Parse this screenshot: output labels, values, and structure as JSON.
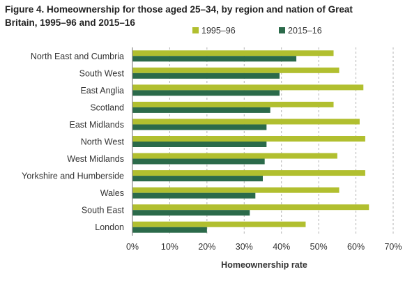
{
  "figure_title": "Figure 4. Homeownership for those aged 25–34, by region and nation of Great Britain, 1995–96 and 2015–16",
  "colors": {
    "series_1995": "#b1bf2f",
    "series_2015": "#2b6a4a",
    "grid": "#b3b3b3",
    "axis": "#6d6d6d",
    "text": "#333333"
  },
  "chart_data": {
    "type": "bar",
    "orientation": "horizontal",
    "title": "Figure 4. Homeownership for those aged 25–34, by region and nation of Great Britain, 1995–96 and 2015–16",
    "xlabel": "Homeownership rate",
    "ylabel": "",
    "xlim": [
      0,
      70
    ],
    "x_ticks": [
      0,
      10,
      20,
      30,
      40,
      50,
      60,
      70
    ],
    "x_tick_labels": [
      "0%",
      "10%",
      "20%",
      "30%",
      "40%",
      "50%",
      "60%",
      "70%"
    ],
    "grid": "vertical dashed",
    "legend_position": "top",
    "categories": [
      "North East and Cumbria",
      "South West",
      "East Anglia",
      "Scotland",
      "East Midlands",
      "North West",
      "West Midlands",
      "Yorkshire and Humberside",
      "Wales",
      "South East",
      "London"
    ],
    "series": [
      {
        "name": "1995–96",
        "values": [
          54,
          55.5,
          62,
          54,
          61,
          62.5,
          55,
          62.5,
          55.5,
          63.5,
          46.5
        ]
      },
      {
        "name": "2015–16",
        "values": [
          44,
          39.5,
          39.5,
          37,
          36,
          36,
          35.5,
          35,
          33,
          31.5,
          20
        ]
      }
    ]
  }
}
